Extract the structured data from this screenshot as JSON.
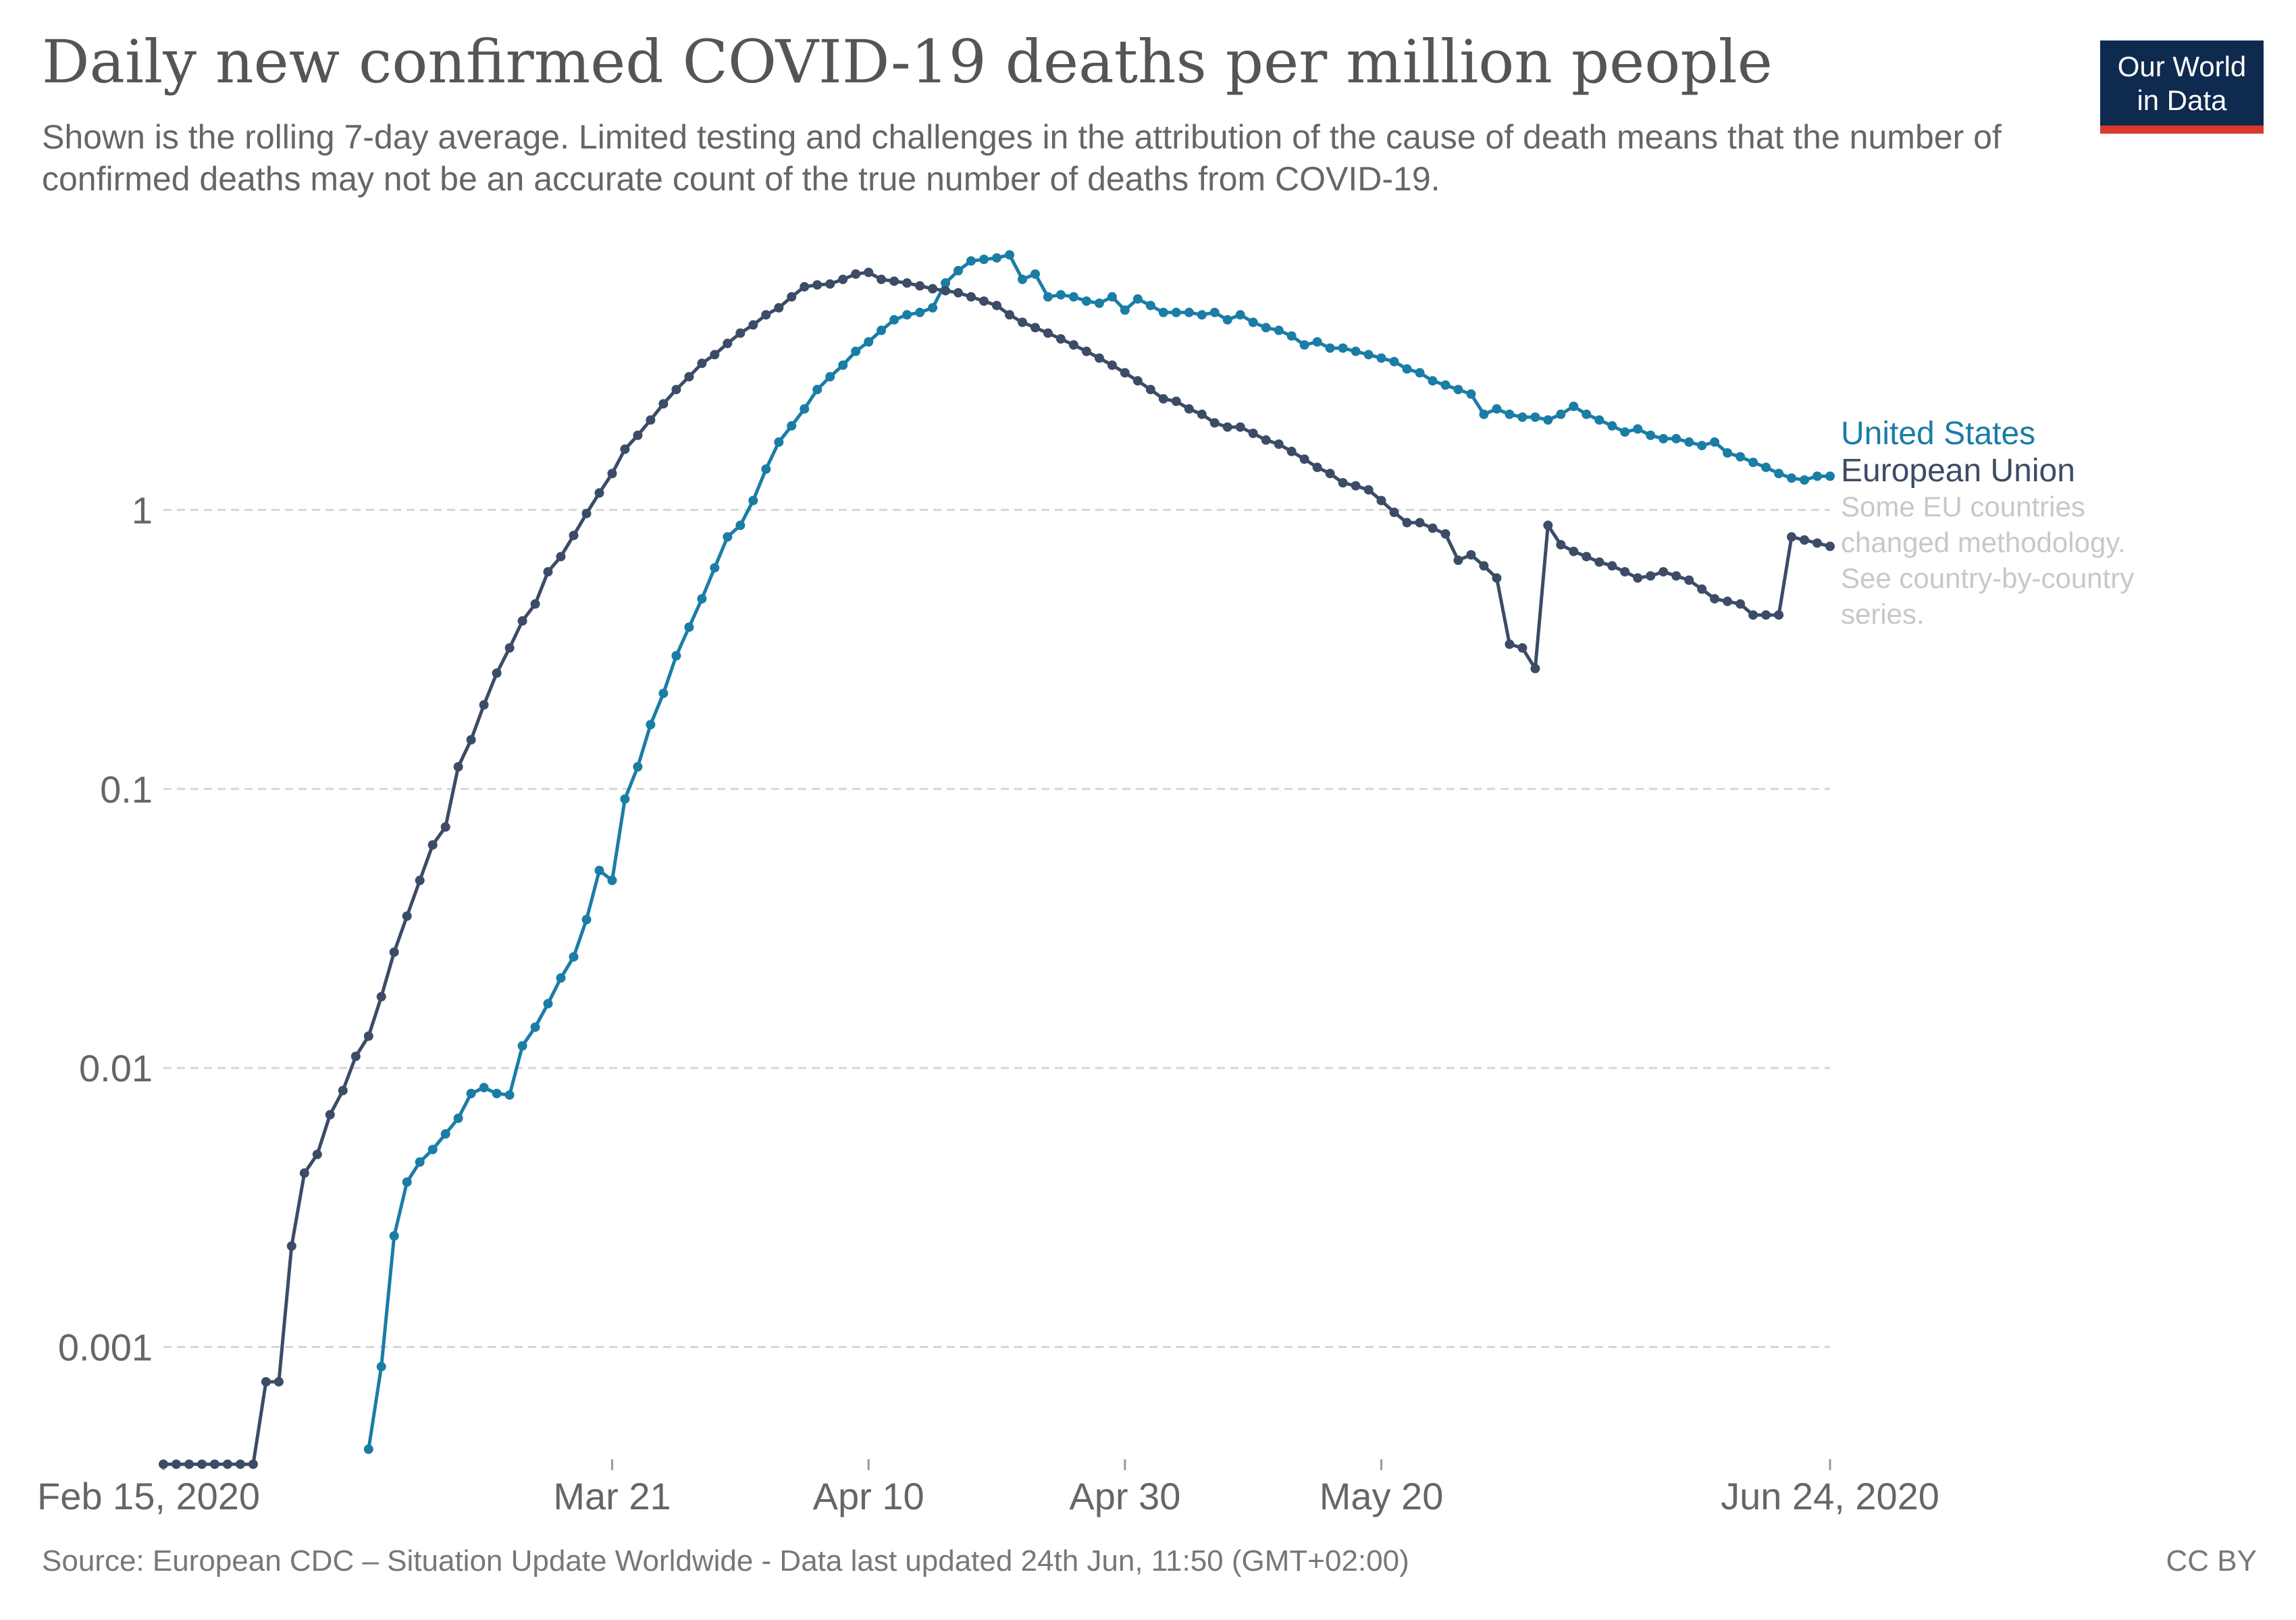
{
  "title": "Daily new confirmed COVID-19 deaths per million people",
  "subtitle": "Shown is the rolling 7-day average. Limited testing and challenges in the attribution of the cause of death means that the number of confirmed deaths may not be an accurate count of the true number of deaths from COVID-19.",
  "logo": {
    "line1": "Our World",
    "line2": "in Data"
  },
  "source": "Source: European CDC – Situation Update Worldwide - Data last updated 24th Jun, 11:50 (GMT+02:00)",
  "license": "CC BY",
  "chart_data": {
    "type": "line",
    "title": "Daily new confirmed COVID-19 deaths per million people",
    "yscale": "log",
    "ylim": [
      0.0004,
      10
    ],
    "xlim": [
      "2020-02-15",
      "2020-06-24"
    ],
    "y_ticks": [
      {
        "value": 0.001,
        "label": "0.001"
      },
      {
        "value": 0.01,
        "label": "0.01"
      },
      {
        "value": 0.1,
        "label": "0.1"
      },
      {
        "value": 1,
        "label": "1"
      }
    ],
    "x_ticks": [
      {
        "date": "2020-02-15",
        "label": "Feb 15, 2020"
      },
      {
        "date": "2020-03-21",
        "label": "Mar 21"
      },
      {
        "date": "2020-04-10",
        "label": "Apr 10"
      },
      {
        "date": "2020-04-30",
        "label": "Apr 30"
      },
      {
        "date": "2020-05-20",
        "label": "May 20"
      },
      {
        "date": "2020-06-24",
        "label": "Jun 24, 2020"
      }
    ],
    "grid": "horizontal dashed",
    "legend": "right, end of lines",
    "note_lines": [
      "Some EU countries",
      "changed methodology.",
      "See country-by-country",
      "series."
    ],
    "series": [
      {
        "name": "United States",
        "color": "#1a7da6",
        "points": [
          [
            "2020-03-02",
            0.00043
          ],
          [
            "2020-03-03",
            0.00085
          ],
          [
            "2020-03-04",
            0.0025
          ],
          [
            "2020-03-05",
            0.0039
          ],
          [
            "2020-03-06",
            0.0046
          ],
          [
            "2020-03-07",
            0.0051
          ],
          [
            "2020-03-08",
            0.0058
          ],
          [
            "2020-03-09",
            0.0066
          ],
          [
            "2020-03-10",
            0.0081
          ],
          [
            "2020-03-11",
            0.0085
          ],
          [
            "2020-03-12",
            0.0081
          ],
          [
            "2020-03-13",
            0.008
          ],
          [
            "2020-03-14",
            0.012
          ],
          [
            "2020-03-15",
            0.014
          ],
          [
            "2020-03-16",
            0.017
          ],
          [
            "2020-03-17",
            0.021
          ],
          [
            "2020-03-18",
            0.025
          ],
          [
            "2020-03-19",
            0.034
          ],
          [
            "2020-03-20",
            0.051
          ],
          [
            "2020-03-21",
            0.047
          ],
          [
            "2020-03-22",
            0.092
          ],
          [
            "2020-03-23",
            0.12
          ],
          [
            "2020-03-24",
            0.17
          ],
          [
            "2020-03-25",
            0.22
          ],
          [
            "2020-03-26",
            0.3
          ],
          [
            "2020-03-27",
            0.38
          ],
          [
            "2020-03-28",
            0.48
          ],
          [
            "2020-03-29",
            0.62
          ],
          [
            "2020-03-30",
            0.8
          ],
          [
            "2020-03-31",
            0.88
          ],
          [
            "2020-04-01",
            1.08
          ],
          [
            "2020-04-02",
            1.4
          ],
          [
            "2020-04-03",
            1.75
          ],
          [
            "2020-04-04",
            2.0
          ],
          [
            "2020-04-05",
            2.3
          ],
          [
            "2020-04-06",
            2.7
          ],
          [
            "2020-04-07",
            3.0
          ],
          [
            "2020-04-08",
            3.3
          ],
          [
            "2020-04-09",
            3.7
          ],
          [
            "2020-04-10",
            4.0
          ],
          [
            "2020-04-11",
            4.4
          ],
          [
            "2020-04-12",
            4.8
          ],
          [
            "2020-04-13",
            5.0
          ],
          [
            "2020-04-14",
            5.1
          ],
          [
            "2020-04-15",
            5.3
          ],
          [
            "2020-04-16",
            6.5
          ],
          [
            "2020-04-17",
            7.2
          ],
          [
            "2020-04-18",
            7.8
          ],
          [
            "2020-04-19",
            7.9
          ],
          [
            "2020-04-20",
            8.0
          ],
          [
            "2020-04-21",
            8.2
          ],
          [
            "2020-04-22",
            6.7
          ],
          [
            "2020-04-23",
            7.0
          ],
          [
            "2020-04-24",
            5.8
          ],
          [
            "2020-04-25",
            5.9
          ],
          [
            "2020-04-26",
            5.8
          ],
          [
            "2020-04-27",
            5.6
          ],
          [
            "2020-04-28",
            5.5
          ],
          [
            "2020-04-29",
            5.8
          ],
          [
            "2020-04-30",
            5.2
          ],
          [
            "2020-05-01",
            5.7
          ],
          [
            "2020-05-02",
            5.4
          ],
          [
            "2020-05-03",
            5.1
          ],
          [
            "2020-05-04",
            5.1
          ],
          [
            "2020-05-05",
            5.1
          ],
          [
            "2020-05-06",
            5.0
          ],
          [
            "2020-05-07",
            5.1
          ],
          [
            "2020-05-08",
            4.8
          ],
          [
            "2020-05-09",
            5.0
          ],
          [
            "2020-05-10",
            4.7
          ],
          [
            "2020-05-11",
            4.5
          ],
          [
            "2020-05-12",
            4.4
          ],
          [
            "2020-05-13",
            4.2
          ],
          [
            "2020-05-14",
            3.9
          ],
          [
            "2020-05-15",
            4.0
          ],
          [
            "2020-05-16",
            3.8
          ],
          [
            "2020-05-17",
            3.8
          ],
          [
            "2020-05-18",
            3.7
          ],
          [
            "2020-05-19",
            3.6
          ],
          [
            "2020-05-20",
            3.5
          ],
          [
            "2020-05-21",
            3.4
          ],
          [
            "2020-05-22",
            3.2
          ],
          [
            "2020-05-23",
            3.1
          ],
          [
            "2020-05-24",
            2.9
          ],
          [
            "2020-05-25",
            2.8
          ],
          [
            "2020-05-26",
            2.7
          ],
          [
            "2020-05-27",
            2.6
          ],
          [
            "2020-05-28",
            2.2
          ],
          [
            "2020-05-29",
            2.3
          ],
          [
            "2020-05-30",
            2.2
          ],
          [
            "2020-05-31",
            2.15
          ],
          [
            "2020-06-01",
            2.15
          ],
          [
            "2020-06-02",
            2.1
          ],
          [
            "2020-06-03",
            2.2
          ],
          [
            "2020-06-04",
            2.35
          ],
          [
            "2020-06-05",
            2.2
          ],
          [
            "2020-06-06",
            2.1
          ],
          [
            "2020-06-07",
            2.0
          ],
          [
            "2020-06-08",
            1.9
          ],
          [
            "2020-06-09",
            1.95
          ],
          [
            "2020-06-10",
            1.85
          ],
          [
            "2020-06-11",
            1.8
          ],
          [
            "2020-06-12",
            1.8
          ],
          [
            "2020-06-13",
            1.75
          ],
          [
            "2020-06-14",
            1.7
          ],
          [
            "2020-06-15",
            1.75
          ],
          [
            "2020-06-16",
            1.6
          ],
          [
            "2020-06-17",
            1.55
          ],
          [
            "2020-06-18",
            1.48
          ],
          [
            "2020-06-19",
            1.42
          ],
          [
            "2020-06-20",
            1.35
          ],
          [
            "2020-06-21",
            1.3
          ],
          [
            "2020-06-22",
            1.28
          ],
          [
            "2020-06-23",
            1.32
          ],
          [
            "2020-06-24",
            1.32
          ]
        ]
      },
      {
        "name": "European Union",
        "color": "#3c4c66",
        "points": [
          [
            "2020-02-15",
            0.00038
          ],
          [
            "2020-02-16",
            0.00038
          ],
          [
            "2020-02-17",
            0.00038
          ],
          [
            "2020-02-18",
            0.00038
          ],
          [
            "2020-02-19",
            0.00038
          ],
          [
            "2020-02-20",
            0.00038
          ],
          [
            "2020-02-21",
            0.00038
          ],
          [
            "2020-02-22",
            0.00038
          ],
          [
            "2020-02-23",
            0.00075
          ],
          [
            "2020-02-24",
            0.00075
          ],
          [
            "2020-02-25",
            0.0023
          ],
          [
            "2020-02-26",
            0.0042
          ],
          [
            "2020-02-27",
            0.0049
          ],
          [
            "2020-02-28",
            0.0068
          ],
          [
            "2020-02-29",
            0.0083
          ],
          [
            "2020-03-01",
            0.011
          ],
          [
            "2020-03-02",
            0.013
          ],
          [
            "2020-03-03",
            0.018
          ],
          [
            "2020-03-04",
            0.026
          ],
          [
            "2020-03-05",
            0.035
          ],
          [
            "2020-03-06",
            0.047
          ],
          [
            "2020-03-07",
            0.063
          ],
          [
            "2020-03-08",
            0.073
          ],
          [
            "2020-03-09",
            0.12
          ],
          [
            "2020-03-10",
            0.15
          ],
          [
            "2020-03-11",
            0.2
          ],
          [
            "2020-03-12",
            0.26
          ],
          [
            "2020-03-13",
            0.32
          ],
          [
            "2020-03-14",
            0.4
          ],
          [
            "2020-03-15",
            0.46
          ],
          [
            "2020-03-16",
            0.6
          ],
          [
            "2020-03-17",
            0.68
          ],
          [
            "2020-03-18",
            0.81
          ],
          [
            "2020-03-19",
            0.97
          ],
          [
            "2020-03-20",
            1.15
          ],
          [
            "2020-03-21",
            1.35
          ],
          [
            "2020-03-22",
            1.65
          ],
          [
            "2020-03-23",
            1.85
          ],
          [
            "2020-03-24",
            2.1
          ],
          [
            "2020-03-25",
            2.4
          ],
          [
            "2020-03-26",
            2.7
          ],
          [
            "2020-03-27",
            3.0
          ],
          [
            "2020-03-28",
            3.35
          ],
          [
            "2020-03-29",
            3.6
          ],
          [
            "2020-03-30",
            3.95
          ],
          [
            "2020-03-31",
            4.3
          ],
          [
            "2020-04-01",
            4.6
          ],
          [
            "2020-04-02",
            5.0
          ],
          [
            "2020-04-03",
            5.3
          ],
          [
            "2020-04-04",
            5.8
          ],
          [
            "2020-04-05",
            6.3
          ],
          [
            "2020-04-06",
            6.4
          ],
          [
            "2020-04-07",
            6.45
          ],
          [
            "2020-04-08",
            6.7
          ],
          [
            "2020-04-09",
            7.0
          ],
          [
            "2020-04-10",
            7.1
          ],
          [
            "2020-04-11",
            6.7
          ],
          [
            "2020-04-12",
            6.6
          ],
          [
            "2020-04-13",
            6.5
          ],
          [
            "2020-04-14",
            6.35
          ],
          [
            "2020-04-15",
            6.2
          ],
          [
            "2020-04-16",
            6.1
          ],
          [
            "2020-04-17",
            6.0
          ],
          [
            "2020-04-18",
            5.8
          ],
          [
            "2020-04-19",
            5.6
          ],
          [
            "2020-04-20",
            5.4
          ],
          [
            "2020-04-21",
            5.0
          ],
          [
            "2020-04-22",
            4.7
          ],
          [
            "2020-04-23",
            4.5
          ],
          [
            "2020-04-24",
            4.3
          ],
          [
            "2020-04-25",
            4.1
          ],
          [
            "2020-04-26",
            3.9
          ],
          [
            "2020-04-27",
            3.7
          ],
          [
            "2020-04-28",
            3.5
          ],
          [
            "2020-04-29",
            3.3
          ],
          [
            "2020-04-30",
            3.1
          ],
          [
            "2020-05-01",
            2.9
          ],
          [
            "2020-05-02",
            2.7
          ],
          [
            "2020-05-03",
            2.5
          ],
          [
            "2020-05-04",
            2.45
          ],
          [
            "2020-05-05",
            2.3
          ],
          [
            "2020-05-06",
            2.2
          ],
          [
            "2020-05-07",
            2.05
          ],
          [
            "2020-05-08",
            1.98
          ],
          [
            "2020-05-09",
            1.98
          ],
          [
            "2020-05-10",
            1.88
          ],
          [
            "2020-05-11",
            1.78
          ],
          [
            "2020-05-12",
            1.72
          ],
          [
            "2020-05-13",
            1.62
          ],
          [
            "2020-05-14",
            1.52
          ],
          [
            "2020-05-15",
            1.42
          ],
          [
            "2020-05-16",
            1.35
          ],
          [
            "2020-05-17",
            1.25
          ],
          [
            "2020-05-18",
            1.22
          ],
          [
            "2020-05-19",
            1.18
          ],
          [
            "2020-05-20",
            1.08
          ],
          [
            "2020-05-21",
            0.98
          ],
          [
            "2020-05-22",
            0.9
          ],
          [
            "2020-05-23",
            0.9
          ],
          [
            "2020-05-24",
            0.86
          ],
          [
            "2020-05-25",
            0.82
          ],
          [
            "2020-05-26",
            0.66
          ],
          [
            "2020-05-27",
            0.69
          ],
          [
            "2020-05-28",
            0.63
          ],
          [
            "2020-05-29",
            0.57
          ],
          [
            "2020-05-30",
            0.33
          ],
          [
            "2020-05-31",
            0.32
          ],
          [
            "2020-06-01",
            0.27
          ],
          [
            "2020-06-02",
            0.88
          ],
          [
            "2020-06-03",
            0.75
          ],
          [
            "2020-06-04",
            0.71
          ],
          [
            "2020-06-05",
            0.68
          ],
          [
            "2020-06-06",
            0.65
          ],
          [
            "2020-06-07",
            0.63
          ],
          [
            "2020-06-08",
            0.6
          ],
          [
            "2020-06-09",
            0.57
          ],
          [
            "2020-06-10",
            0.58
          ],
          [
            "2020-06-11",
            0.6
          ],
          [
            "2020-06-12",
            0.58
          ],
          [
            "2020-06-13",
            0.56
          ],
          [
            "2020-06-14",
            0.52
          ],
          [
            "2020-06-15",
            0.48
          ],
          [
            "2020-06-16",
            0.47
          ],
          [
            "2020-06-17",
            0.46
          ],
          [
            "2020-06-18",
            0.42
          ],
          [
            "2020-06-19",
            0.42
          ],
          [
            "2020-06-20",
            0.42
          ],
          [
            "2020-06-21",
            0.8
          ],
          [
            "2020-06-22",
            0.78
          ],
          [
            "2020-06-23",
            0.76
          ],
          [
            "2020-06-24",
            0.74
          ]
        ]
      }
    ]
  }
}
